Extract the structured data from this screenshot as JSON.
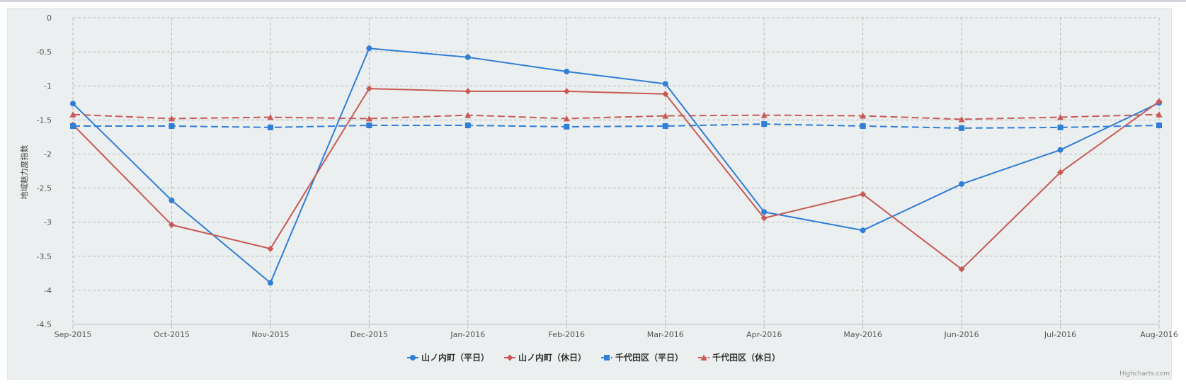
{
  "chart_data": {
    "type": "line",
    "title": "",
    "xlabel": "",
    "ylabel": "地域魅力度指数",
    "ylim": [
      -4.5,
      0
    ],
    "yticks": [
      0,
      -0.5,
      -1,
      -1.5,
      -2,
      -2.5,
      -3,
      -3.5,
      -4,
      -4.5
    ],
    "ytick_labels": [
      "0",
      "-0.5",
      "-1",
      "-1.5",
      "-2",
      "-2.5",
      "-3",
      "-3.5",
      "-4",
      "-4.5"
    ],
    "grid": true,
    "legend_position": "bottom-center",
    "categories": [
      "Sep-2015",
      "Oct-2015",
      "Nov-2015",
      "Dec-2015",
      "Jan-2016",
      "Feb-2016",
      "Mar-2016",
      "Apr-2016",
      "May-2016",
      "Jun-2016",
      "Jul-2016",
      "Aug-2016"
    ],
    "series": [
      {
        "name": "山ノ内町（平日）",
        "color": "#2f7ed8",
        "dash": "solid",
        "marker": "circle",
        "values": [
          -1.26,
          -2.68,
          -3.89,
          -0.45,
          -0.58,
          -0.79,
          -0.97,
          -2.85,
          -3.12,
          -2.44,
          -1.94,
          -1.25
        ]
      },
      {
        "name": "山ノ内町（休日）",
        "color": "#c75a56",
        "dash": "solid",
        "marker": "diamond",
        "values": [
          -1.57,
          -3.04,
          -3.39,
          -1.04,
          -1.08,
          -1.08,
          -1.12,
          -2.94,
          -2.59,
          -3.69,
          -2.27,
          -1.23
        ]
      },
      {
        "name": "千代田区（平日）",
        "color": "#2f7ed8",
        "dash": "dashed",
        "marker": "square",
        "values": [
          -1.59,
          -1.59,
          -1.61,
          -1.58,
          -1.58,
          -1.6,
          -1.59,
          -1.56,
          -1.59,
          -1.62,
          -1.61,
          -1.58
        ]
      },
      {
        "name": "千代田区（休日）",
        "color": "#c75a56",
        "dash": "dashed",
        "marker": "triangle",
        "values": [
          -1.42,
          -1.48,
          -1.46,
          -1.48,
          -1.43,
          -1.48,
          -1.44,
          -1.43,
          -1.44,
          -1.49,
          -1.46,
          -1.42
        ]
      }
    ],
    "credits": "Highcharts.com"
  }
}
